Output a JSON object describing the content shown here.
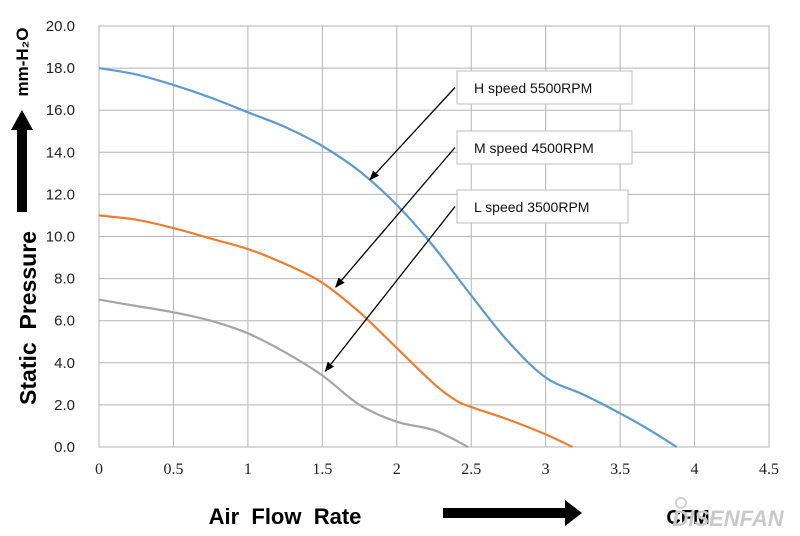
{
  "chart_data": {
    "type": "line",
    "xlabel": "Air  Flow  Rate",
    "xunit": "CFM",
    "ylabel": "Static  Pressure",
    "yunit": "mm-H₂O",
    "xlim": [
      0,
      4.5
    ],
    "ylim": [
      0,
      20
    ],
    "x_ticks": [
      "0",
      "0.5",
      "1",
      "1.5",
      "2",
      "2.5",
      "3",
      "3.5",
      "4",
      "4.5"
    ],
    "y_ticks": [
      "0.0",
      "2.0",
      "4.0",
      "6.0",
      "8.0",
      "10.0",
      "12.0",
      "14.0",
      "16.0",
      "18.0",
      "20.0"
    ],
    "grid": true,
    "series": [
      {
        "name": "H  speed  5500RPM",
        "color": "#5b9bd5",
        "points": [
          [
            0,
            18
          ],
          [
            0.25,
            17.7
          ],
          [
            0.5,
            17.2
          ],
          [
            0.75,
            16.6
          ],
          [
            1,
            15.9
          ],
          [
            1.25,
            15.2
          ],
          [
            1.5,
            14.3
          ],
          [
            1.75,
            13.1
          ],
          [
            2,
            11.5
          ],
          [
            2.25,
            9.5
          ],
          [
            2.5,
            7.2
          ],
          [
            2.75,
            5
          ],
          [
            3,
            3.3
          ],
          [
            3.25,
            2.5
          ],
          [
            3.5,
            1.6
          ],
          [
            3.7,
            0.8
          ],
          [
            3.88,
            0
          ]
        ]
      },
      {
        "name": "M  speed  4500RPM",
        "color": "#ed7d31",
        "points": [
          [
            0,
            11
          ],
          [
            0.25,
            10.8
          ],
          [
            0.5,
            10.4
          ],
          [
            0.75,
            9.9
          ],
          [
            1,
            9.4
          ],
          [
            1.25,
            8.7
          ],
          [
            1.5,
            7.8
          ],
          [
            1.75,
            6.4
          ],
          [
            2,
            4.7
          ],
          [
            2.25,
            3
          ],
          [
            2.4,
            2.2
          ],
          [
            2.5,
            1.9
          ],
          [
            2.75,
            1.3
          ],
          [
            3,
            0.6
          ],
          [
            3.18,
            0
          ]
        ]
      },
      {
        "name": "L  speed  3500RPM",
        "color": "#a5a5a5",
        "points": [
          [
            0,
            7
          ],
          [
            0.25,
            6.7
          ],
          [
            0.5,
            6.4
          ],
          [
            0.75,
            6
          ],
          [
            1,
            5.4
          ],
          [
            1.25,
            4.5
          ],
          [
            1.5,
            3.4
          ],
          [
            1.75,
            2
          ],
          [
            2,
            1.2
          ],
          [
            2.25,
            0.8
          ],
          [
            2.48,
            0
          ]
        ]
      }
    ],
    "callouts": [
      {
        "label": "H  speed  5500RPM",
        "target": [
          1.82,
          12.7
        ]
      },
      {
        "label": "M  speed  4500RPM",
        "target": [
          1.59,
          7.6
        ]
      },
      {
        "label": "L  speed  3500RPM",
        "target": [
          1.52,
          3.6
        ]
      }
    ]
  },
  "brand": "DISENFAN"
}
